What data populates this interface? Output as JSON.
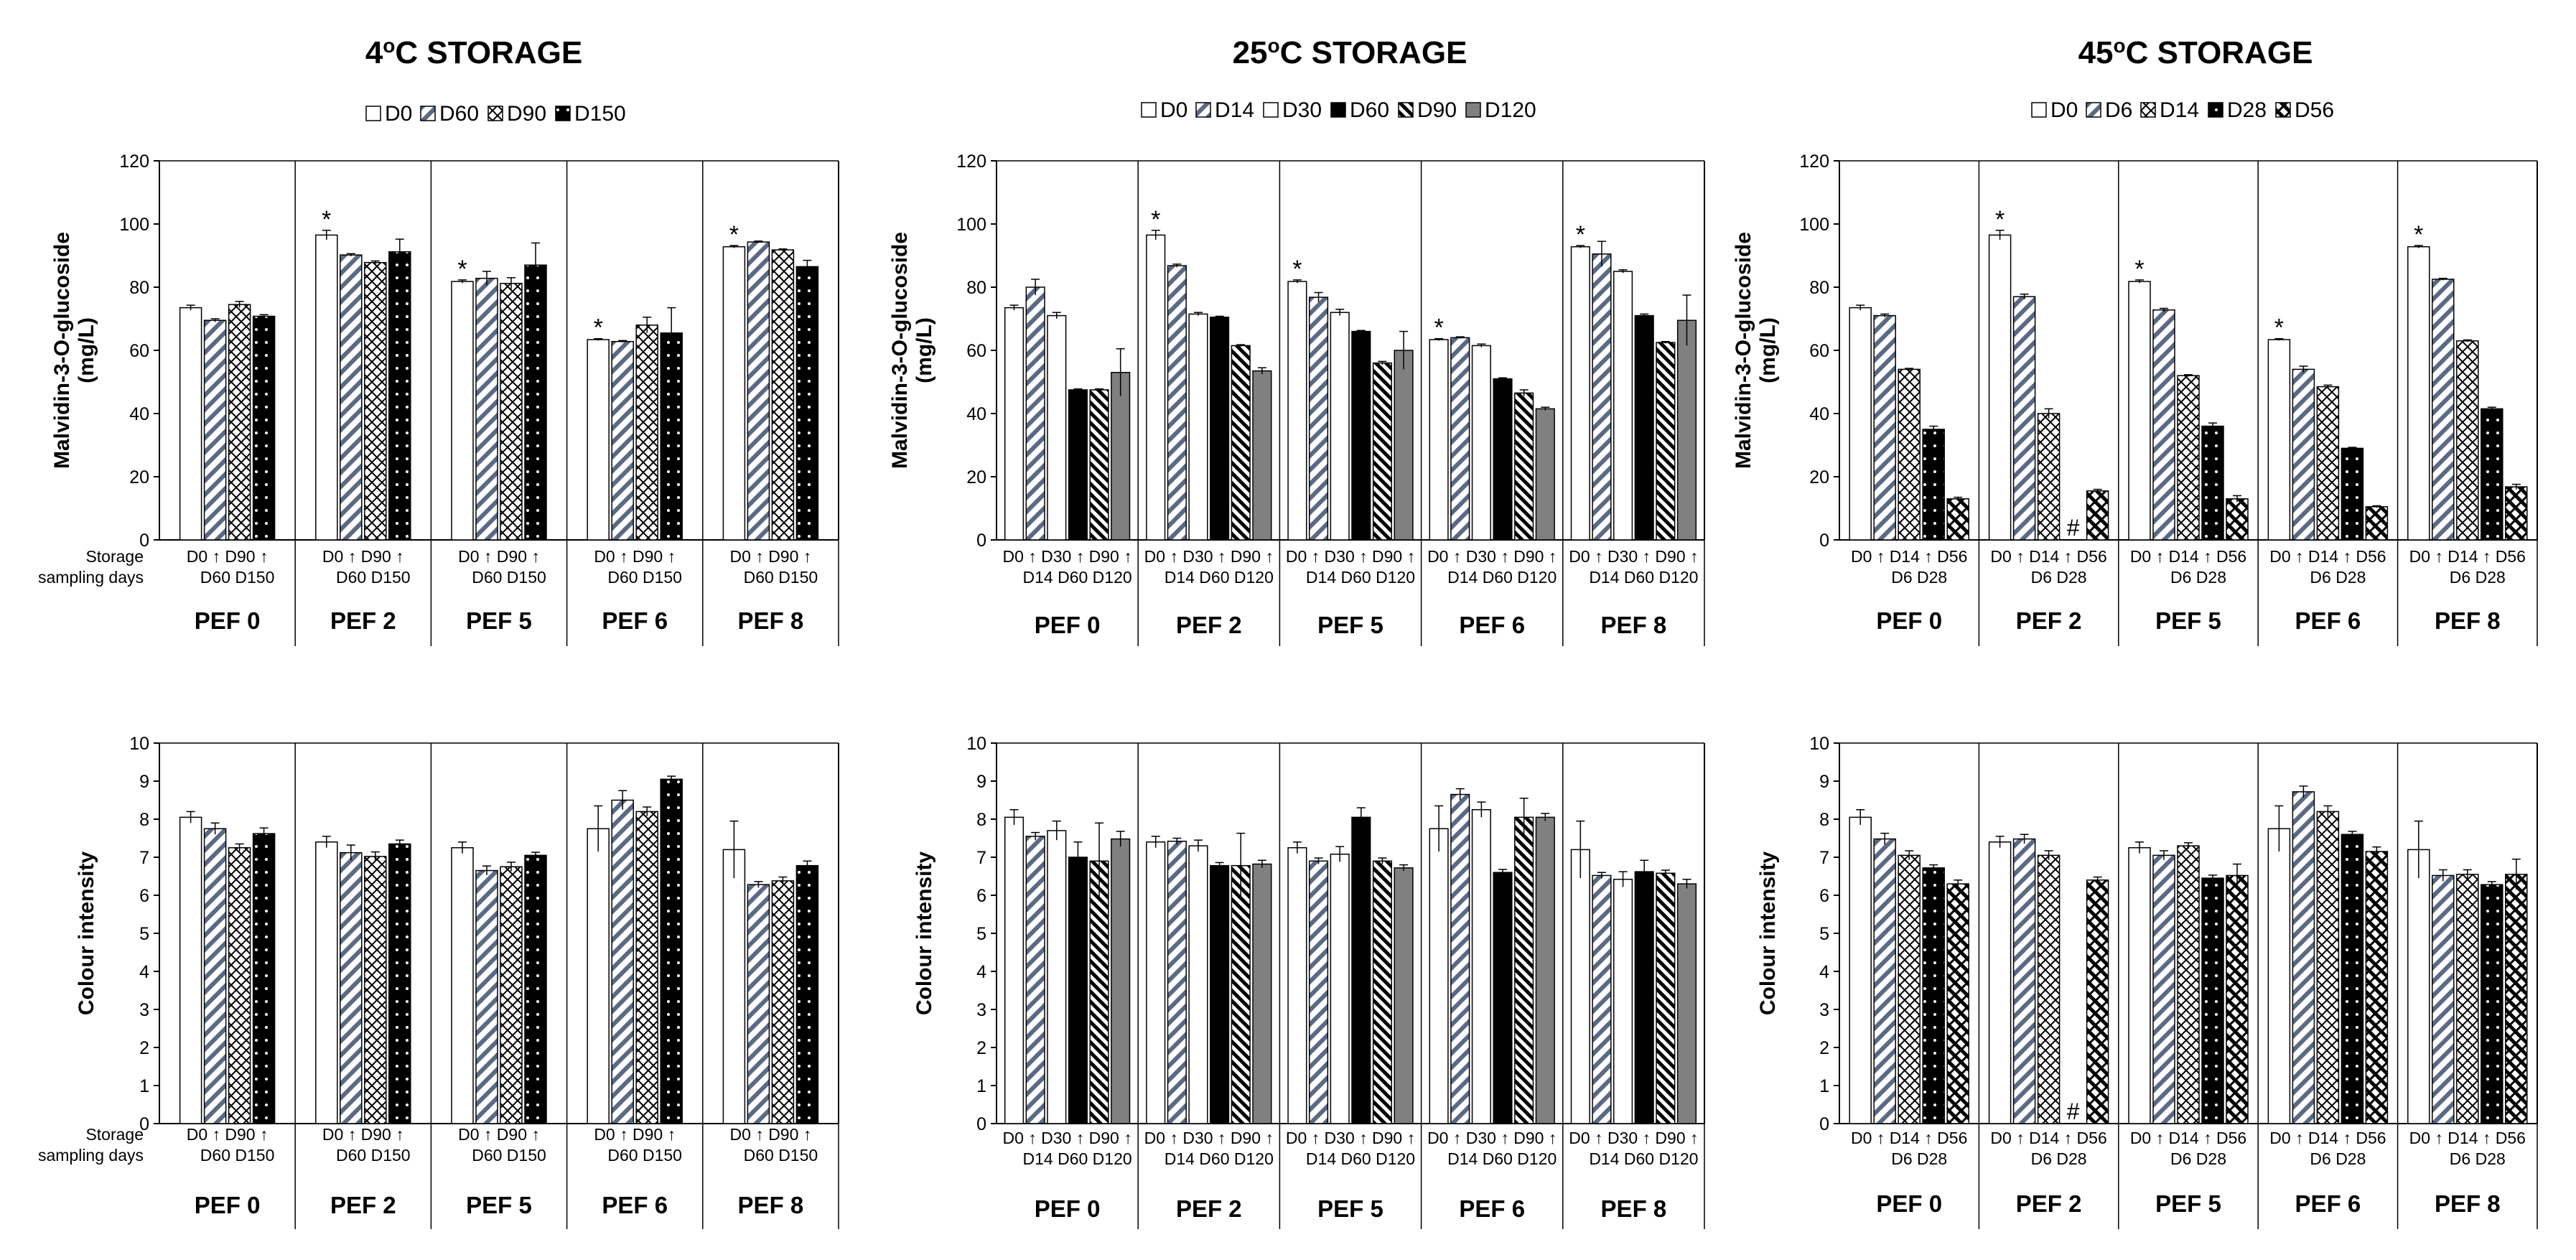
{
  "figure": {
    "storage_label": "Storage",
    "sampling_label": "sampling days",
    "sig_marker": "*",
    "missing_marker": "#"
  },
  "series_styles": {
    "D0": {
      "pattern": "white",
      "color": "#ffffff"
    },
    "D6": {
      "pattern": "diag",
      "color": "#5a6a85"
    },
    "D14": {
      "pattern": "diag",
      "color": "#5a6a85"
    },
    "D30": {
      "pattern": "white",
      "color": "#ffffff"
    },
    "D60": {
      "pattern": "diag",
      "color": "#5a6a85"
    },
    "D90": {
      "pattern": "checker",
      "color": "#000000"
    },
    "D150": {
      "pattern": "dots",
      "color": "#000000"
    },
    "D120": {
      "pattern": "solid",
      "color": "#808080"
    },
    "D28": {
      "pattern": "dots",
      "color": "#000000"
    },
    "D56": {
      "pattern": "zigzag",
      "color": "#000000"
    }
  },
  "chart_data": [
    {
      "id": "a1",
      "type": "bar",
      "title": "4°C STORAGE",
      "title_main": "4",
      "title_sup": "o",
      "title_rest": "C STORAGE",
      "ylabel": "Malvidin-3-O-glucoside",
      "ylabel2": "(mg/L)",
      "ylim": [
        0,
        120
      ],
      "yticks": [
        0,
        20,
        40,
        60,
        80,
        100,
        120
      ],
      "legend": [
        "D0",
        "D60",
        "D90",
        "D150"
      ],
      "styles": [
        "white",
        "diag",
        "checker",
        "dots"
      ],
      "groups": [
        "PEF 0",
        "PEF 2",
        "PEF 5",
        "PEF 6",
        "PEF 8"
      ],
      "day_rows": [
        [
          "D0",
          "↑",
          "D90",
          "↑"
        ],
        [
          "D60",
          "D150"
        ]
      ],
      "show_storage": true,
      "values": [
        [
          73.5,
          69.5,
          74.5,
          70.8
        ],
        [
          96.5,
          90.2,
          87.8,
          91.2
        ],
        [
          81.8,
          82.8,
          81.2,
          87.0
        ],
        [
          63.4,
          62.8,
          68.0,
          65.5
        ],
        [
          92.8,
          94.3,
          91.8,
          86.5
        ]
      ],
      "errors": [
        [
          0.8,
          0.5,
          1.0,
          0.5
        ],
        [
          1.5,
          0.4,
          0.5,
          4.0
        ],
        [
          0.5,
          2.2,
          1.8,
          7.0
        ],
        [
          0.3,
          0.3,
          2.5,
          8.0
        ],
        [
          0.4,
          0.3,
          0.3,
          2.0
        ]
      ],
      "sig": [
        false,
        true,
        true,
        true,
        true
      ]
    },
    {
      "id": "a2",
      "type": "bar",
      "title": "25°C STORAGE",
      "title_main": "25",
      "title_sup": "o",
      "title_rest": "C STORAGE",
      "ylabel": "Malvidin-3-O-glucoside",
      "ylabel2": "(mg/L)",
      "ylim": [
        0,
        120
      ],
      "yticks": [
        0,
        20,
        40,
        60,
        80,
        100,
        120
      ],
      "legend": [
        "D0",
        "D14",
        "D30",
        "D60",
        "D90",
        "D120"
      ],
      "styles": [
        "white",
        "diag",
        "white",
        "solid-black",
        "stripes",
        "gray"
      ],
      "groups": [
        "PEF 0",
        "PEF 2",
        "PEF 5",
        "PEF 6",
        "PEF 8"
      ],
      "day_rows": [
        [
          "D0",
          "↑",
          "D30",
          "↑",
          "D90",
          "↑"
        ],
        [
          "D14",
          "D60",
          "D120"
        ]
      ],
      "show_storage": false,
      "values": [
        [
          73.5,
          80.0,
          71.0,
          47.5,
          47.5,
          53.0
        ],
        [
          96.5,
          86.8,
          71.5,
          70.5,
          61.5,
          53.5
        ],
        [
          81.8,
          76.8,
          72.0,
          66.0,
          56.0,
          60.0
        ],
        [
          63.4,
          64.0,
          61.5,
          51.0,
          46.5,
          41.5
        ],
        [
          92.8,
          90.5,
          85.0,
          71.0,
          62.5,
          69.5
        ]
      ],
      "errors": [
        [
          0.8,
          2.5,
          1.0,
          0.3,
          0.3,
          7.5
        ],
        [
          1.5,
          0.5,
          0.5,
          0.3,
          0.3,
          1.0
        ],
        [
          0.5,
          1.5,
          1.0,
          0.3,
          0.5,
          6.0
        ],
        [
          0.3,
          0.3,
          0.5,
          0.3,
          1.0,
          0.5
        ],
        [
          0.4,
          4.0,
          0.5,
          0.5,
          0.3,
          8.0
        ]
      ],
      "sig": [
        false,
        true,
        true,
        true,
        true
      ]
    },
    {
      "id": "a3",
      "type": "bar",
      "title": "45°C STORAGE",
      "title_main": "45",
      "title_sup": "o",
      "title_rest": "C STORAGE",
      "ylabel": "Malvidin-3-O-glucoside",
      "ylabel2": "(mg/L)",
      "ylim": [
        0,
        120
      ],
      "yticks": [
        0,
        20,
        40,
        60,
        80,
        100,
        120
      ],
      "legend": [
        "D0",
        "D6",
        "D14",
        "D28",
        "D56"
      ],
      "styles": [
        "white",
        "diag",
        "checker",
        "dots",
        "zigzag"
      ],
      "groups": [
        "PEF 0",
        "PEF 2",
        "PEF 5",
        "PEF 6",
        "PEF 8"
      ],
      "day_rows": [
        [
          "D0",
          "↑",
          "D14",
          "↑",
          "D56"
        ],
        [
          "D6",
          "D28"
        ]
      ],
      "show_storage": false,
      "values": [
        [
          73.5,
          71.0,
          54.0,
          35.0,
          13.0
        ],
        [
          96.5,
          77.0,
          40.0,
          null,
          15.5
        ],
        [
          81.8,
          72.8,
          52.0,
          36.0,
          13.0
        ],
        [
          63.4,
          54.0,
          48.5,
          29.0,
          10.5
        ],
        [
          92.8,
          82.5,
          63.0,
          41.5,
          16.8
        ]
      ],
      "errors": [
        [
          0.8,
          0.5,
          0.3,
          1.0,
          0.5
        ],
        [
          1.5,
          0.8,
          1.5,
          0,
          0.5
        ],
        [
          0.5,
          0.5,
          0.3,
          1.0,
          1.0
        ],
        [
          0.3,
          1.0,
          0.5,
          0.3,
          0.3
        ],
        [
          0.4,
          0.3,
          0.3,
          0.5,
          0.8
        ]
      ],
      "sig": [
        false,
        true,
        true,
        true,
        true
      ],
      "missing": [
        [
          1,
          3
        ]
      ]
    },
    {
      "id": "b1",
      "type": "bar",
      "title": "",
      "ylabel": "Colour intensity",
      "ylabel2": "",
      "ylim": [
        0,
        10
      ],
      "yticks": [
        0,
        1,
        2,
        3,
        4,
        5,
        6,
        7,
        8,
        9,
        10
      ],
      "legend": [],
      "styles": [
        "white",
        "diag",
        "checker",
        "dots"
      ],
      "groups": [
        "PEF 0",
        "PEF 2",
        "PEF 5",
        "PEF 6",
        "PEF 8"
      ],
      "day_rows": [
        [
          "D0",
          "↑",
          "D90",
          "↑"
        ],
        [
          "D60",
          "D150"
        ]
      ],
      "show_storage": true,
      "values": [
        [
          8.05,
          7.75,
          7.25,
          7.62
        ],
        [
          7.4,
          7.12,
          7.02,
          7.35
        ],
        [
          7.25,
          6.65,
          6.75,
          7.05
        ],
        [
          7.75,
          8.5,
          8.2,
          9.05
        ],
        [
          7.2,
          6.28,
          6.38,
          6.78
        ]
      ],
      "errors": [
        [
          0.15,
          0.15,
          0.1,
          0.15
        ],
        [
          0.15,
          0.2,
          0.12,
          0.1
        ],
        [
          0.15,
          0.12,
          0.12,
          0.08
        ],
        [
          0.6,
          0.25,
          0.12,
          0.08
        ],
        [
          0.75,
          0.08,
          0.1,
          0.12
        ]
      ],
      "sig": [
        false,
        false,
        false,
        false,
        false
      ]
    },
    {
      "id": "b2",
      "type": "bar",
      "title": "",
      "ylabel": "Colour intensity",
      "ylabel2": "",
      "ylim": [
        0,
        10
      ],
      "yticks": [
        0,
        1,
        2,
        3,
        4,
        5,
        6,
        7,
        8,
        9,
        10
      ],
      "legend": [],
      "styles": [
        "white",
        "diag",
        "white",
        "solid-black",
        "stripes",
        "gray"
      ],
      "groups": [
        "PEF 0",
        "PEF 2",
        "PEF 5",
        "PEF 6",
        "PEF 8"
      ],
      "day_rows": [
        [
          "D0",
          "↑",
          "D30",
          "↑",
          "D90",
          "↑"
        ],
        [
          "D14",
          "D60",
          "D120"
        ]
      ],
      "show_storage": false,
      "values": [
        [
          8.05,
          7.55,
          7.7,
          7.0,
          6.9,
          7.48
        ],
        [
          7.4,
          7.42,
          7.3,
          6.78,
          6.78,
          6.82
        ],
        [
          7.25,
          6.9,
          7.08,
          8.05,
          6.9,
          6.72
        ],
        [
          7.75,
          8.65,
          8.25,
          6.6,
          8.05,
          8.05
        ],
        [
          7.2,
          6.52,
          6.42,
          6.62,
          6.58,
          6.3
        ]
      ],
      "errors": [
        [
          0.2,
          0.1,
          0.25,
          0.4,
          1.0,
          0.2
        ],
        [
          0.15,
          0.08,
          0.15,
          0.08,
          0.85,
          0.1
        ],
        [
          0.15,
          0.08,
          0.2,
          0.25,
          0.08,
          0.08
        ],
        [
          0.6,
          0.15,
          0.2,
          0.08,
          0.5,
          0.1
        ],
        [
          0.75,
          0.08,
          0.2,
          0.3,
          0.08,
          0.12
        ]
      ],
      "sig": [
        false,
        false,
        false,
        false,
        false
      ]
    },
    {
      "id": "b3",
      "type": "bar",
      "title": "",
      "ylabel": "Colour intensity",
      "ylabel2": "",
      "ylim": [
        0,
        10
      ],
      "yticks": [
        0,
        1,
        2,
        3,
        4,
        5,
        6,
        7,
        8,
        9,
        10
      ],
      "legend": [],
      "styles": [
        "white",
        "diag",
        "checker",
        "dots",
        "zigzag"
      ],
      "groups": [
        "PEF 0",
        "PEF 2",
        "PEF 5",
        "PEF 6",
        "PEF 8"
      ],
      "day_rows": [
        [
          "D0",
          "↑",
          "D14",
          "↑",
          "D56"
        ],
        [
          "D6",
          "D28"
        ]
      ],
      "show_storage": false,
      "values": [
        [
          8.05,
          7.48,
          7.05,
          6.72,
          6.3
        ],
        [
          7.4,
          7.48,
          7.05,
          null,
          6.4
        ],
        [
          7.25,
          7.05,
          7.3,
          6.45,
          6.52
        ],
        [
          7.75,
          8.72,
          8.2,
          7.6,
          7.15
        ],
        [
          7.2,
          6.52,
          6.55,
          6.28,
          6.55
        ]
      ],
      "errors": [
        [
          0.2,
          0.15,
          0.12,
          0.08,
          0.1
        ],
        [
          0.15,
          0.12,
          0.12,
          0,
          0.08
        ],
        [
          0.15,
          0.12,
          0.08,
          0.08,
          0.3
        ],
        [
          0.6,
          0.15,
          0.15,
          0.08,
          0.12
        ],
        [
          0.75,
          0.15,
          0.12,
          0.08,
          0.4
        ]
      ],
      "sig": [
        false,
        false,
        false,
        false,
        false
      ],
      "missing": [
        [
          1,
          3
        ]
      ]
    }
  ]
}
